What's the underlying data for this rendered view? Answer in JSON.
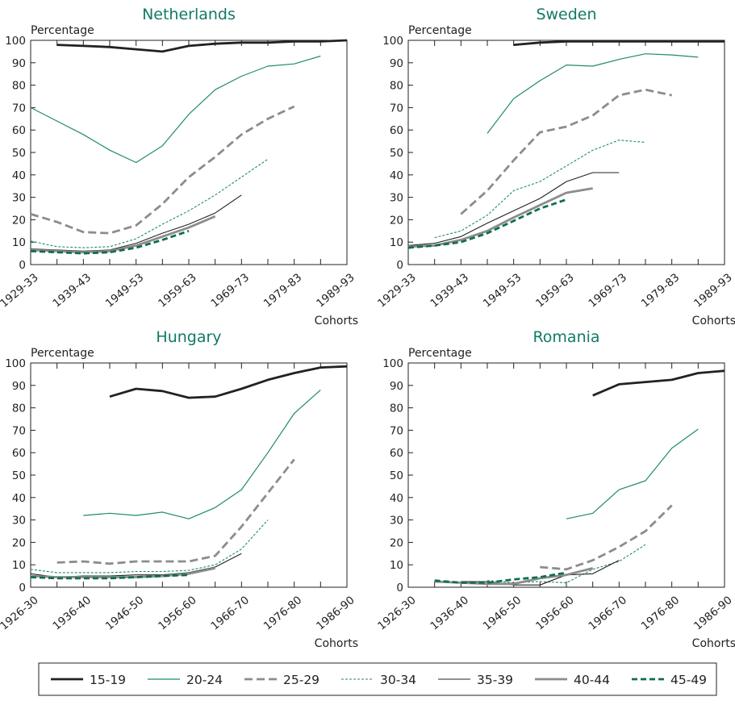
{
  "chart_data": [
    {
      "type": "line",
      "title": "Netherlands",
      "ylabel": "Percentage",
      "xlabel": "Cohorts",
      "ylim": [
        0,
        100
      ],
      "yticks": [
        0,
        10,
        20,
        30,
        40,
        50,
        60,
        70,
        80,
        90,
        100
      ],
      "x": [
        "1929-33",
        "1934-38",
        "1939-43",
        "1944-48",
        "1949-53",
        "1954-58",
        "1959-63",
        "1964-68",
        "1969-73",
        "1974-78",
        "1979-83",
        "1984-88",
        "1989-93"
      ],
      "xtick_labels": [
        "1929-33",
        "1939-43",
        "1949-53",
        "1959-63",
        "1969-73",
        "1979-83",
        "1989-93"
      ],
      "series": [
        {
          "name": "15-19",
          "values": [
            null,
            98,
            97.5,
            97,
            96,
            95,
            97.5,
            98.5,
            99,
            99,
            99.5,
            99.5,
            100
          ]
        },
        {
          "name": "20-24",
          "values": [
            70,
            64,
            58,
            51,
            45.5,
            53,
            67,
            78,
            84,
            88.5,
            89.5,
            93,
            null
          ]
        },
        {
          "name": "25-29",
          "values": [
            22.5,
            19,
            14.5,
            14,
            17.5,
            27,
            39,
            48,
            58,
            65,
            70.5,
            null,
            null
          ]
        },
        {
          "name": "30-34",
          "values": [
            10.5,
            8,
            7.5,
            8,
            11.5,
            18,
            24,
            31,
            39,
            47,
            null,
            null,
            null
          ]
        },
        {
          "name": "35-39",
          "values": [
            7,
            6.5,
            6,
            6.5,
            9.5,
            14,
            18,
            23,
            31,
            null,
            null,
            null,
            null
          ]
        },
        {
          "name": "40-44",
          "values": [
            6.5,
            6,
            5.5,
            6,
            8.5,
            12.5,
            16.5,
            21.5,
            null,
            null,
            null,
            null,
            null
          ]
        },
        {
          "name": "45-49",
          "values": [
            6,
            5.5,
            5,
            5.5,
            7.5,
            11,
            15,
            null,
            null,
            null,
            null,
            null,
            null
          ]
        }
      ]
    },
    {
      "type": "line",
      "title": "Sweden",
      "ylabel": "Percentage",
      "xlabel": "Cohorts",
      "ylim": [
        0,
        100
      ],
      "yticks": [
        0,
        10,
        20,
        30,
        40,
        50,
        60,
        70,
        80,
        90,
        100
      ],
      "x": [
        "1929-33",
        "1934-38",
        "1939-43",
        "1944-48",
        "1949-53",
        "1954-58",
        "1959-63",
        "1964-68",
        "1969-73",
        "1974-78",
        "1979-83",
        "1984-88",
        "1989-93"
      ],
      "xtick_labels": [
        "1929-33",
        "1939-43",
        "1949-53",
        "1959-63",
        "1969-73",
        "1979-83",
        "1989-93"
      ],
      "series": [
        {
          "name": "15-19",
          "values": [
            null,
            null,
            null,
            null,
            98,
            99,
            99.5,
            99.5,
            99.5,
            99.5,
            99.5,
            99.5,
            99.5
          ]
        },
        {
          "name": "20-24",
          "values": [
            null,
            null,
            null,
            58.5,
            74,
            82,
            89,
            88.5,
            91.5,
            94,
            93.5,
            92.5,
            null
          ]
        },
        {
          "name": "25-29",
          "values": [
            null,
            null,
            22.5,
            33,
            46.5,
            59,
            61.5,
            66.5,
            75.5,
            78,
            75.5,
            null,
            null
          ]
        },
        {
          "name": "30-34",
          "values": [
            null,
            12,
            15,
            22,
            33,
            37,
            44,
            51,
            55.5,
            54.5,
            null,
            null,
            null
          ]
        },
        {
          "name": "35-39",
          "values": [
            8.5,
            9.5,
            12.5,
            18.5,
            24,
            29.5,
            37,
            41,
            41,
            null,
            null,
            null,
            null
          ]
        },
        {
          "name": "40-44",
          "values": [
            8,
            8.5,
            11,
            15,
            21,
            26.5,
            32,
            34,
            null,
            null,
            null,
            null,
            null
          ]
        },
        {
          "name": "45-49",
          "values": [
            7.5,
            8.5,
            10,
            14,
            19.5,
            25,
            29,
            null,
            null,
            null,
            null,
            null,
            null
          ]
        }
      ]
    },
    {
      "type": "line",
      "title": "Hungary",
      "ylabel": "Percentage",
      "xlabel": "Cohorts",
      "ylim": [
        0,
        100
      ],
      "yticks": [
        0,
        10,
        20,
        30,
        40,
        50,
        60,
        70,
        80,
        90,
        100
      ],
      "x": [
        "1926-30",
        "1931-35",
        "1936-40",
        "1941-45",
        "1946-50",
        "1951-55",
        "1956-60",
        "1961-65",
        "1966-70",
        "1971-75",
        "1976-80",
        "1981-85",
        "1986-90"
      ],
      "xtick_labels": [
        "1926-30",
        "1936-40",
        "1946-50",
        "1956-60",
        "1966-70",
        "1976-80",
        "1986-90"
      ],
      "series": [
        {
          "name": "15-19",
          "values": [
            null,
            null,
            null,
            85,
            88.5,
            87.5,
            84.5,
            85,
            88.5,
            92.5,
            95.5,
            98,
            98.5
          ]
        },
        {
          "name": "20-24",
          "values": [
            null,
            null,
            32,
            33,
            32,
            33.5,
            30.5,
            35.5,
            43.5,
            60,
            77.5,
            88,
            null
          ]
        },
        {
          "name": "25-29",
          "values": [
            null,
            11,
            11.5,
            10.5,
            11.5,
            11.5,
            11.5,
            14,
            27,
            42,
            57,
            null,
            null
          ]
        },
        {
          "name": "30-34",
          "values": [
            8,
            6.5,
            6.5,
            6.5,
            7,
            7,
            7.5,
            10,
            17,
            30,
            null,
            null,
            null
          ]
        },
        {
          "name": "35-39",
          "values": [
            6,
            4.5,
            5,
            5,
            5.5,
            5.5,
            6.5,
            9,
            15,
            null,
            null,
            null,
            null
          ]
        },
        {
          "name": "40-44",
          "values": [
            5,
            4.5,
            4.5,
            4.5,
            4.5,
            5,
            6,
            8.5,
            null,
            null,
            null,
            null,
            null
          ]
        },
        {
          "name": "45-49",
          "values": [
            4.5,
            4,
            4,
            4,
            4.5,
            5,
            5.5,
            null,
            null,
            null,
            null,
            null,
            null
          ]
        }
      ]
    },
    {
      "type": "line",
      "title": "Romania",
      "ylabel": "Percentage",
      "xlabel": "Cohorts",
      "ylim": [
        0,
        100
      ],
      "yticks": [
        0,
        10,
        20,
        30,
        40,
        50,
        60,
        70,
        80,
        90,
        100
      ],
      "x": [
        "1926-30",
        "1931-35",
        "1936-40",
        "1941-45",
        "1946-50",
        "1951-55",
        "1956-60",
        "1961-65",
        "1966-70",
        "1971-75",
        "1976-80",
        "1981-85",
        "1986-90"
      ],
      "xtick_labels": [
        "1926-30",
        "1936-40",
        "1946-50",
        "1956-60",
        "1966-70",
        "1976-80",
        "1986-90"
      ],
      "series": [
        {
          "name": "15-19",
          "values": [
            null,
            null,
            null,
            null,
            null,
            null,
            null,
            85.5,
            90.5,
            91.5,
            92.5,
            95.5,
            96.5
          ]
        },
        {
          "name": "20-24",
          "values": [
            null,
            null,
            null,
            null,
            null,
            null,
            30.5,
            33,
            43.5,
            47.5,
            62,
            70.5,
            null
          ]
        },
        {
          "name": "25-29",
          "values": [
            null,
            null,
            null,
            null,
            null,
            9,
            8,
            12,
            18,
            25,
            36.5,
            null,
            null
          ]
        },
        {
          "name": "30-34",
          "values": [
            null,
            null,
            null,
            3,
            2,
            2.5,
            2,
            8,
            11.5,
            19,
            null,
            null,
            null
          ]
        },
        {
          "name": "35-39",
          "values": [
            null,
            null,
            2.5,
            2.5,
            1,
            1,
            5.5,
            6,
            12,
            null,
            null,
            null,
            null
          ]
        },
        {
          "name": "40-44",
          "values": [
            null,
            2.5,
            2,
            1.5,
            1.5,
            4,
            5.5,
            8.5,
            null,
            null,
            null,
            null,
            null
          ]
        },
        {
          "name": "45-49",
          "values": [
            null,
            3,
            2,
            2,
            3.5,
            4.5,
            6.5,
            null,
            null,
            null,
            null,
            null,
            null
          ]
        }
      ]
    }
  ],
  "series_styles": [
    {
      "name": "15-19",
      "color": "#222222",
      "width": 2.8,
      "dash": ""
    },
    {
      "name": "20-24",
      "color": "#1f8a6e",
      "width": 1.2,
      "dash": ""
    },
    {
      "name": "25-29",
      "color": "#8c8c8c",
      "width": 2.8,
      "dash": "10,5"
    },
    {
      "name": "30-34",
      "color": "#1f8a6e",
      "width": 1.1,
      "dash": "3,2"
    },
    {
      "name": "35-39",
      "color": "#222222",
      "width": 1.1,
      "dash": ""
    },
    {
      "name": "40-44",
      "color": "#8c8c8c",
      "width": 2.8,
      "dash": ""
    },
    {
      "name": "45-49",
      "color": "#0f6f4a",
      "width": 2.8,
      "dash": "7,4"
    }
  ],
  "legend": {
    "entries": [
      "15-19",
      "20-24",
      "25-29",
      "30-34",
      "35-39",
      "40-44",
      "45-49"
    ]
  }
}
